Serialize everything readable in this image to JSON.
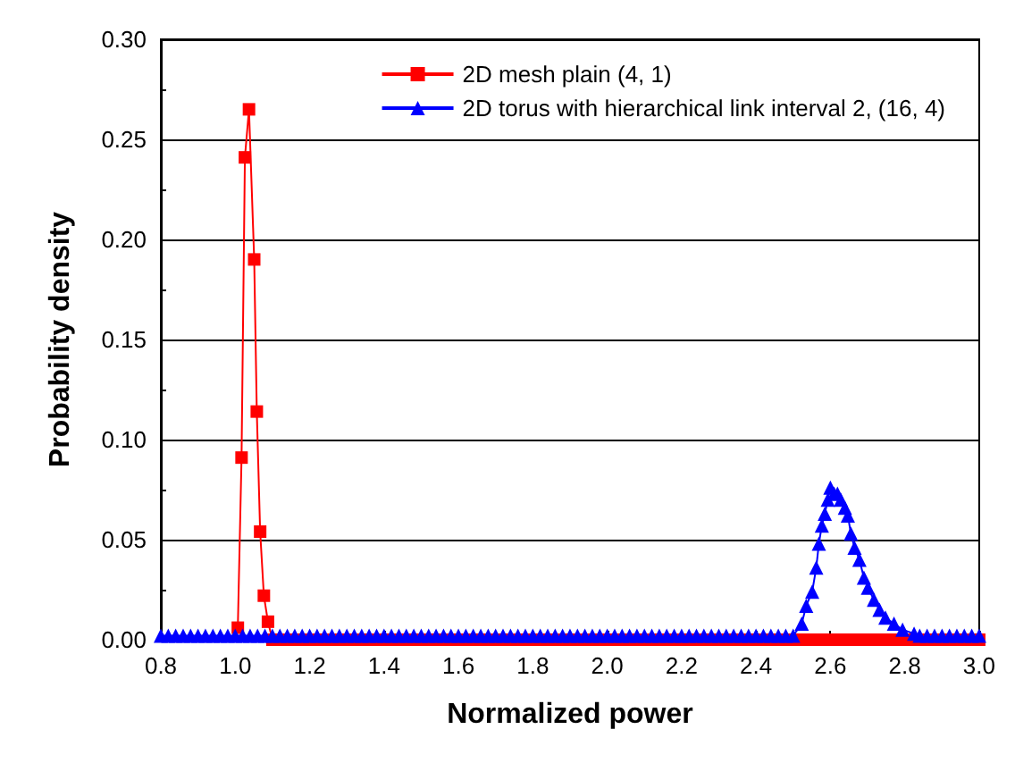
{
  "chart_data": {
    "type": "line",
    "xlabel": "Normalized power",
    "ylabel": "Probability density",
    "xlim": [
      0.8,
      3.0
    ],
    "xticks": [
      0.8,
      {
        "value": 1,
        "label": "1.0"
      },
      1.2,
      1.4,
      1.6,
      1.8,
      {
        "value": 2,
        "label": "2.0"
      },
      2.2,
      2.4,
      2.6,
      2.8,
      {
        "value": 3,
        "label": "3.0"
      }
    ],
    "ylim": [
      0,
      0.3
    ],
    "yticks": [
      {
        "value": 0,
        "label": "0.00"
      },
      0.05,
      {
        "value": 0.1,
        "label": "0.10"
      },
      0.15,
      {
        "value": 0.2,
        "label": "0.20"
      },
      0.25,
      {
        "value": 0.3,
        "label": "0.30"
      }
    ],
    "grid": "y",
    "legend": "top right",
    "series": [
      {
        "name": "2D mesh plain (4, 1)",
        "color": "#ff0000",
        "marker": "square",
        "x": [
          1.007,
          1.017,
          1.026,
          1.037,
          1.051,
          1.058,
          1.067,
          1.077,
          1.088,
          1.1,
          1.12,
          1.14,
          1.16,
          1.18,
          1.2,
          1.22,
          1.24,
          1.26,
          1.28,
          1.3,
          1.32,
          1.34,
          1.36,
          1.38,
          1.4,
          1.42,
          1.44,
          1.46,
          1.48,
          1.5,
          1.52,
          1.54,
          1.56,
          1.58,
          1.6,
          1.62,
          1.64,
          1.66,
          1.68,
          1.7,
          1.72,
          1.74,
          1.76,
          1.78,
          1.8,
          1.82,
          1.84,
          1.86,
          1.88,
          1.9,
          1.92,
          1.94,
          1.96,
          1.98,
          2,
          2.02,
          2.04,
          2.06,
          2.08,
          2.1,
          2.12,
          2.14,
          2.16,
          2.18,
          2.2,
          2.22,
          2.24,
          2.26,
          2.28,
          2.3,
          2.32,
          2.34,
          2.36,
          2.38,
          2.4,
          2.42,
          2.44,
          2.46,
          2.48,
          2.5,
          2.52,
          2.54,
          2.56,
          2.58,
          2.6,
          2.62,
          2.64,
          2.66,
          2.68,
          2.7,
          2.72,
          2.74,
          2.76,
          2.78,
          2.8,
          2.82,
          2.84,
          2.86,
          2.88,
          2.9,
          2.92,
          2.94,
          2.96,
          2.98,
          3
        ],
        "values": [
          0.006,
          0.091,
          0.241,
          0.265,
          0.19,
          0.114,
          0.054,
          0.022,
          0.009,
          0,
          0,
          0,
          0,
          0,
          0,
          0,
          0,
          0,
          0,
          0,
          0,
          0,
          0,
          0,
          0,
          0,
          0,
          0,
          0,
          0,
          0,
          0,
          0,
          0,
          0,
          0,
          0,
          0,
          0,
          0,
          0,
          0,
          0,
          0,
          0,
          0,
          0,
          0,
          0,
          0,
          0,
          0,
          0,
          0,
          0,
          0,
          0,
          0,
          0,
          0,
          0,
          0,
          0,
          0,
          0,
          0,
          0,
          0,
          0,
          0,
          0,
          0,
          0,
          0,
          0,
          0,
          0,
          0,
          0,
          0,
          0,
          0,
          0,
          0,
          0,
          0,
          0,
          0,
          0,
          0,
          0,
          0,
          0,
          0,
          0,
          0,
          0,
          0,
          0,
          0,
          0,
          0,
          0,
          0,
          0
        ]
      },
      {
        "name": "2D torus with hierarchical link interval 2, (16, 4)",
        "color": "#0000ff",
        "marker": "triangle",
        "x": [
          0.8,
          0.82,
          0.84,
          0.86,
          0.88,
          0.9,
          0.92,
          0.94,
          0.96,
          0.98,
          1,
          1.02,
          1.04,
          1.06,
          1.08,
          1.1,
          1.12,
          1.14,
          1.16,
          1.18,
          1.2,
          1.22,
          1.24,
          1.26,
          1.28,
          1.3,
          1.32,
          1.34,
          1.36,
          1.38,
          1.4,
          1.42,
          1.44,
          1.46,
          1.48,
          1.5,
          1.52,
          1.54,
          1.56,
          1.58,
          1.6,
          1.62,
          1.64,
          1.66,
          1.68,
          1.7,
          1.72,
          1.74,
          1.76,
          1.78,
          1.8,
          1.82,
          1.84,
          1.86,
          1.88,
          1.9,
          1.92,
          1.94,
          1.96,
          1.98,
          2,
          2.02,
          2.04,
          2.06,
          2.08,
          2.1,
          2.12,
          2.14,
          2.16,
          2.18,
          2.2,
          2.22,
          2.24,
          2.26,
          2.28,
          2.3,
          2.32,
          2.34,
          2.36,
          2.38,
          2.4,
          2.42,
          2.44,
          2.46,
          2.48,
          2.5,
          2.523,
          2.535,
          2.551,
          2.562,
          2.569,
          2.577,
          2.585,
          2.593,
          2.6,
          2.61,
          2.619,
          2.628,
          2.639,
          2.647,
          2.655,
          2.665,
          2.678,
          2.69,
          2.701,
          2.717,
          2.732,
          2.748,
          2.771,
          2.794,
          2.825,
          2.84,
          2.86,
          2.88,
          2.9,
          2.92,
          2.94,
          2.96,
          2.98,
          3
        ],
        "values": [
          0.002,
          0.002,
          0.002,
          0.002,
          0.002,
          0.002,
          0.002,
          0.002,
          0.002,
          0.002,
          0.002,
          0.002,
          0.002,
          0.002,
          0.002,
          0.002,
          0.002,
          0.002,
          0.002,
          0.002,
          0.002,
          0.002,
          0.002,
          0.002,
          0.002,
          0.002,
          0.002,
          0.002,
          0.002,
          0.002,
          0.002,
          0.002,
          0.002,
          0.002,
          0.002,
          0.002,
          0.002,
          0.002,
          0.002,
          0.002,
          0.002,
          0.002,
          0.002,
          0.002,
          0.002,
          0.002,
          0.002,
          0.002,
          0.002,
          0.002,
          0.002,
          0.002,
          0.002,
          0.002,
          0.002,
          0.002,
          0.002,
          0.002,
          0.002,
          0.002,
          0.002,
          0.002,
          0.002,
          0.002,
          0.002,
          0.002,
          0.002,
          0.002,
          0.002,
          0.002,
          0.002,
          0.002,
          0.002,
          0.002,
          0.002,
          0.002,
          0.002,
          0.002,
          0.002,
          0.002,
          0.002,
          0.002,
          0.002,
          0.002,
          0.002,
          0.002,
          0.008,
          0.017,
          0.024,
          0.036,
          0.048,
          0.057,
          0.063,
          0.07,
          0.076,
          0.073,
          0.073,
          0.07,
          0.066,
          0.062,
          0.053,
          0.046,
          0.04,
          0.031,
          0.026,
          0.02,
          0.015,
          0.011,
          0.008,
          0.005,
          0.003,
          0.002,
          0.002,
          0.002,
          0.002,
          0.002,
          0.002,
          0.002,
          0.002,
          0.002
        ]
      }
    ]
  }
}
